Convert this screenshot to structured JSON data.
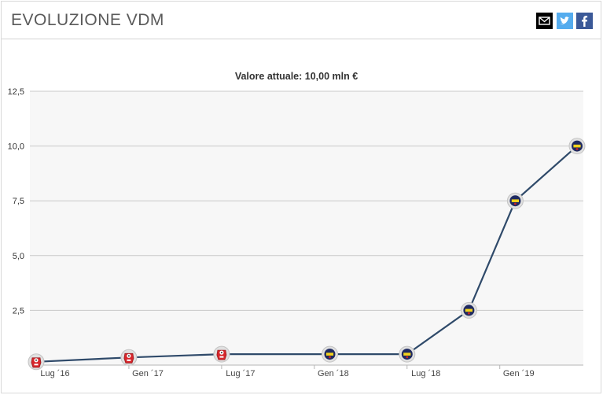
{
  "header": {
    "title": "EVOLUZIONE VDM",
    "share_icons": [
      "email-icon",
      "twitter-icon",
      "facebook-icon"
    ]
  },
  "chart_data": {
    "type": "line",
    "subtitle": "Valore attuale: 10,00 mln €",
    "xlabel": "",
    "ylabel": "",
    "x_ticks": [
      "Lug ´16",
      "Gen ´17",
      "Lug ´17",
      "Gen ´18",
      "Lug ´18",
      "Gen ´19"
    ],
    "y_ticks": [
      "2,5",
      "5,0",
      "7,5",
      "10,0",
      "12,5"
    ],
    "ylim": [
      0,
      12.5
    ],
    "grid": true,
    "legend": "none",
    "colors": {
      "line": "#2f4a6a",
      "plot_bg": "#f7f7f7",
      "grid": "#c8c8c8"
    },
    "points": [
      {
        "date": "2016-07",
        "value": 0.15,
        "club": "red-white"
      },
      {
        "date": "2017-01",
        "value": 0.35,
        "club": "red-white"
      },
      {
        "date": "2017-07",
        "value": 0.5,
        "club": "red-white"
      },
      {
        "date": "2018-02",
        "value": 0.5,
        "club": "yellow-navy"
      },
      {
        "date": "2018-07",
        "value": 0.5,
        "club": "yellow-navy"
      },
      {
        "date": "2018-11",
        "value": 2.5,
        "club": "yellow-navy"
      },
      {
        "date": "2019-02",
        "value": 7.5,
        "club": "yellow-navy"
      },
      {
        "date": "2019-06",
        "value": 10.0,
        "club": "yellow-navy"
      }
    ]
  }
}
